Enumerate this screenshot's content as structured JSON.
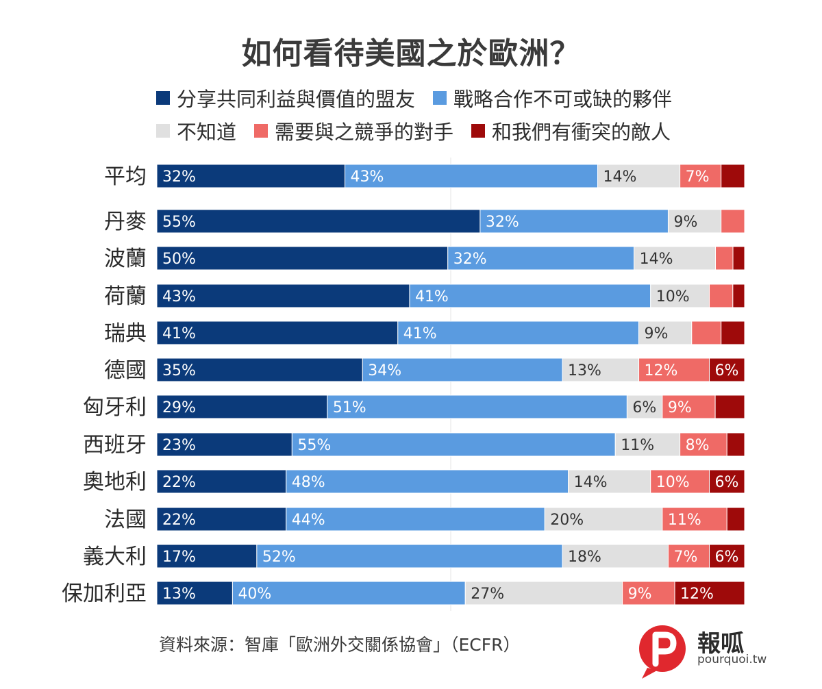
{
  "chart_data": {
    "type": "bar",
    "orientation": "horizontal",
    "stacked": true,
    "title": "如何看待美國之於歐洲？",
    "categories": [
      "平均",
      "丹麥",
      "波蘭",
      "荷蘭",
      "瑞典",
      "德國",
      "匈牙利",
      "西班牙",
      "奧地利",
      "法國",
      "義大利",
      "保加利亞"
    ],
    "series": [
      {
        "name": "分享共同利益與價值的盟友",
        "color": "#0b3a7a",
        "values": [
          32,
          55,
          50,
          43,
          41,
          35,
          29,
          23,
          22,
          22,
          17,
          13
        ]
      },
      {
        "name": "戰略合作不可或缺的夥伴",
        "color": "#5a9be0",
        "values": [
          43,
          32,
          32,
          41,
          41,
          34,
          51,
          55,
          48,
          44,
          52,
          40
        ]
      },
      {
        "name": "不知道",
        "color": "#e0e0e0",
        "values": [
          14,
          9,
          14,
          10,
          9,
          13,
          6,
          11,
          14,
          20,
          18,
          27
        ]
      },
      {
        "name": "需要與之競爭的對手",
        "color": "#ef6a66",
        "values": [
          7,
          4,
          3,
          4,
          5,
          12,
          9,
          8,
          10,
          11,
          7,
          9
        ]
      },
      {
        "name": "和我們有衝突的敵人",
        "color": "#9e0a0a",
        "values": [
          4,
          0,
          2,
          2,
          4,
          6,
          5,
          3,
          6,
          3,
          6,
          12
        ]
      }
    ],
    "value_labels": [
      [
        "32%",
        "43%",
        "14%",
        "7%",
        ""
      ],
      [
        "55%",
        "32%",
        "9%",
        "",
        ""
      ],
      [
        "50%",
        "32%",
        "14%",
        "",
        ""
      ],
      [
        "43%",
        "41%",
        "10%",
        "",
        ""
      ],
      [
        "41%",
        "41%",
        "9%",
        "",
        ""
      ],
      [
        "35%",
        "34%",
        "13%",
        "12%",
        "6%"
      ],
      [
        "29%",
        "51%",
        "6%",
        "9%",
        ""
      ],
      [
        "23%",
        "55%",
        "11%",
        "8%",
        ""
      ],
      [
        "22%",
        "48%",
        "14%",
        "10%",
        "6%"
      ],
      [
        "22%",
        "44%",
        "20%",
        "11%",
        ""
      ],
      [
        "17%",
        "52%",
        "18%",
        "7%",
        "6%"
      ],
      [
        "13%",
        "40%",
        "27%",
        "9%",
        "12%"
      ]
    ],
    "xlim": [
      0,
      100
    ],
    "grid": false,
    "legend_position": "top"
  },
  "source": "資料來源：智庫「歐洲外交關係協會」（ECFR）",
  "logo": {
    "name": "報呱",
    "url": "pourquoi.tw",
    "color": "#e0282e"
  }
}
